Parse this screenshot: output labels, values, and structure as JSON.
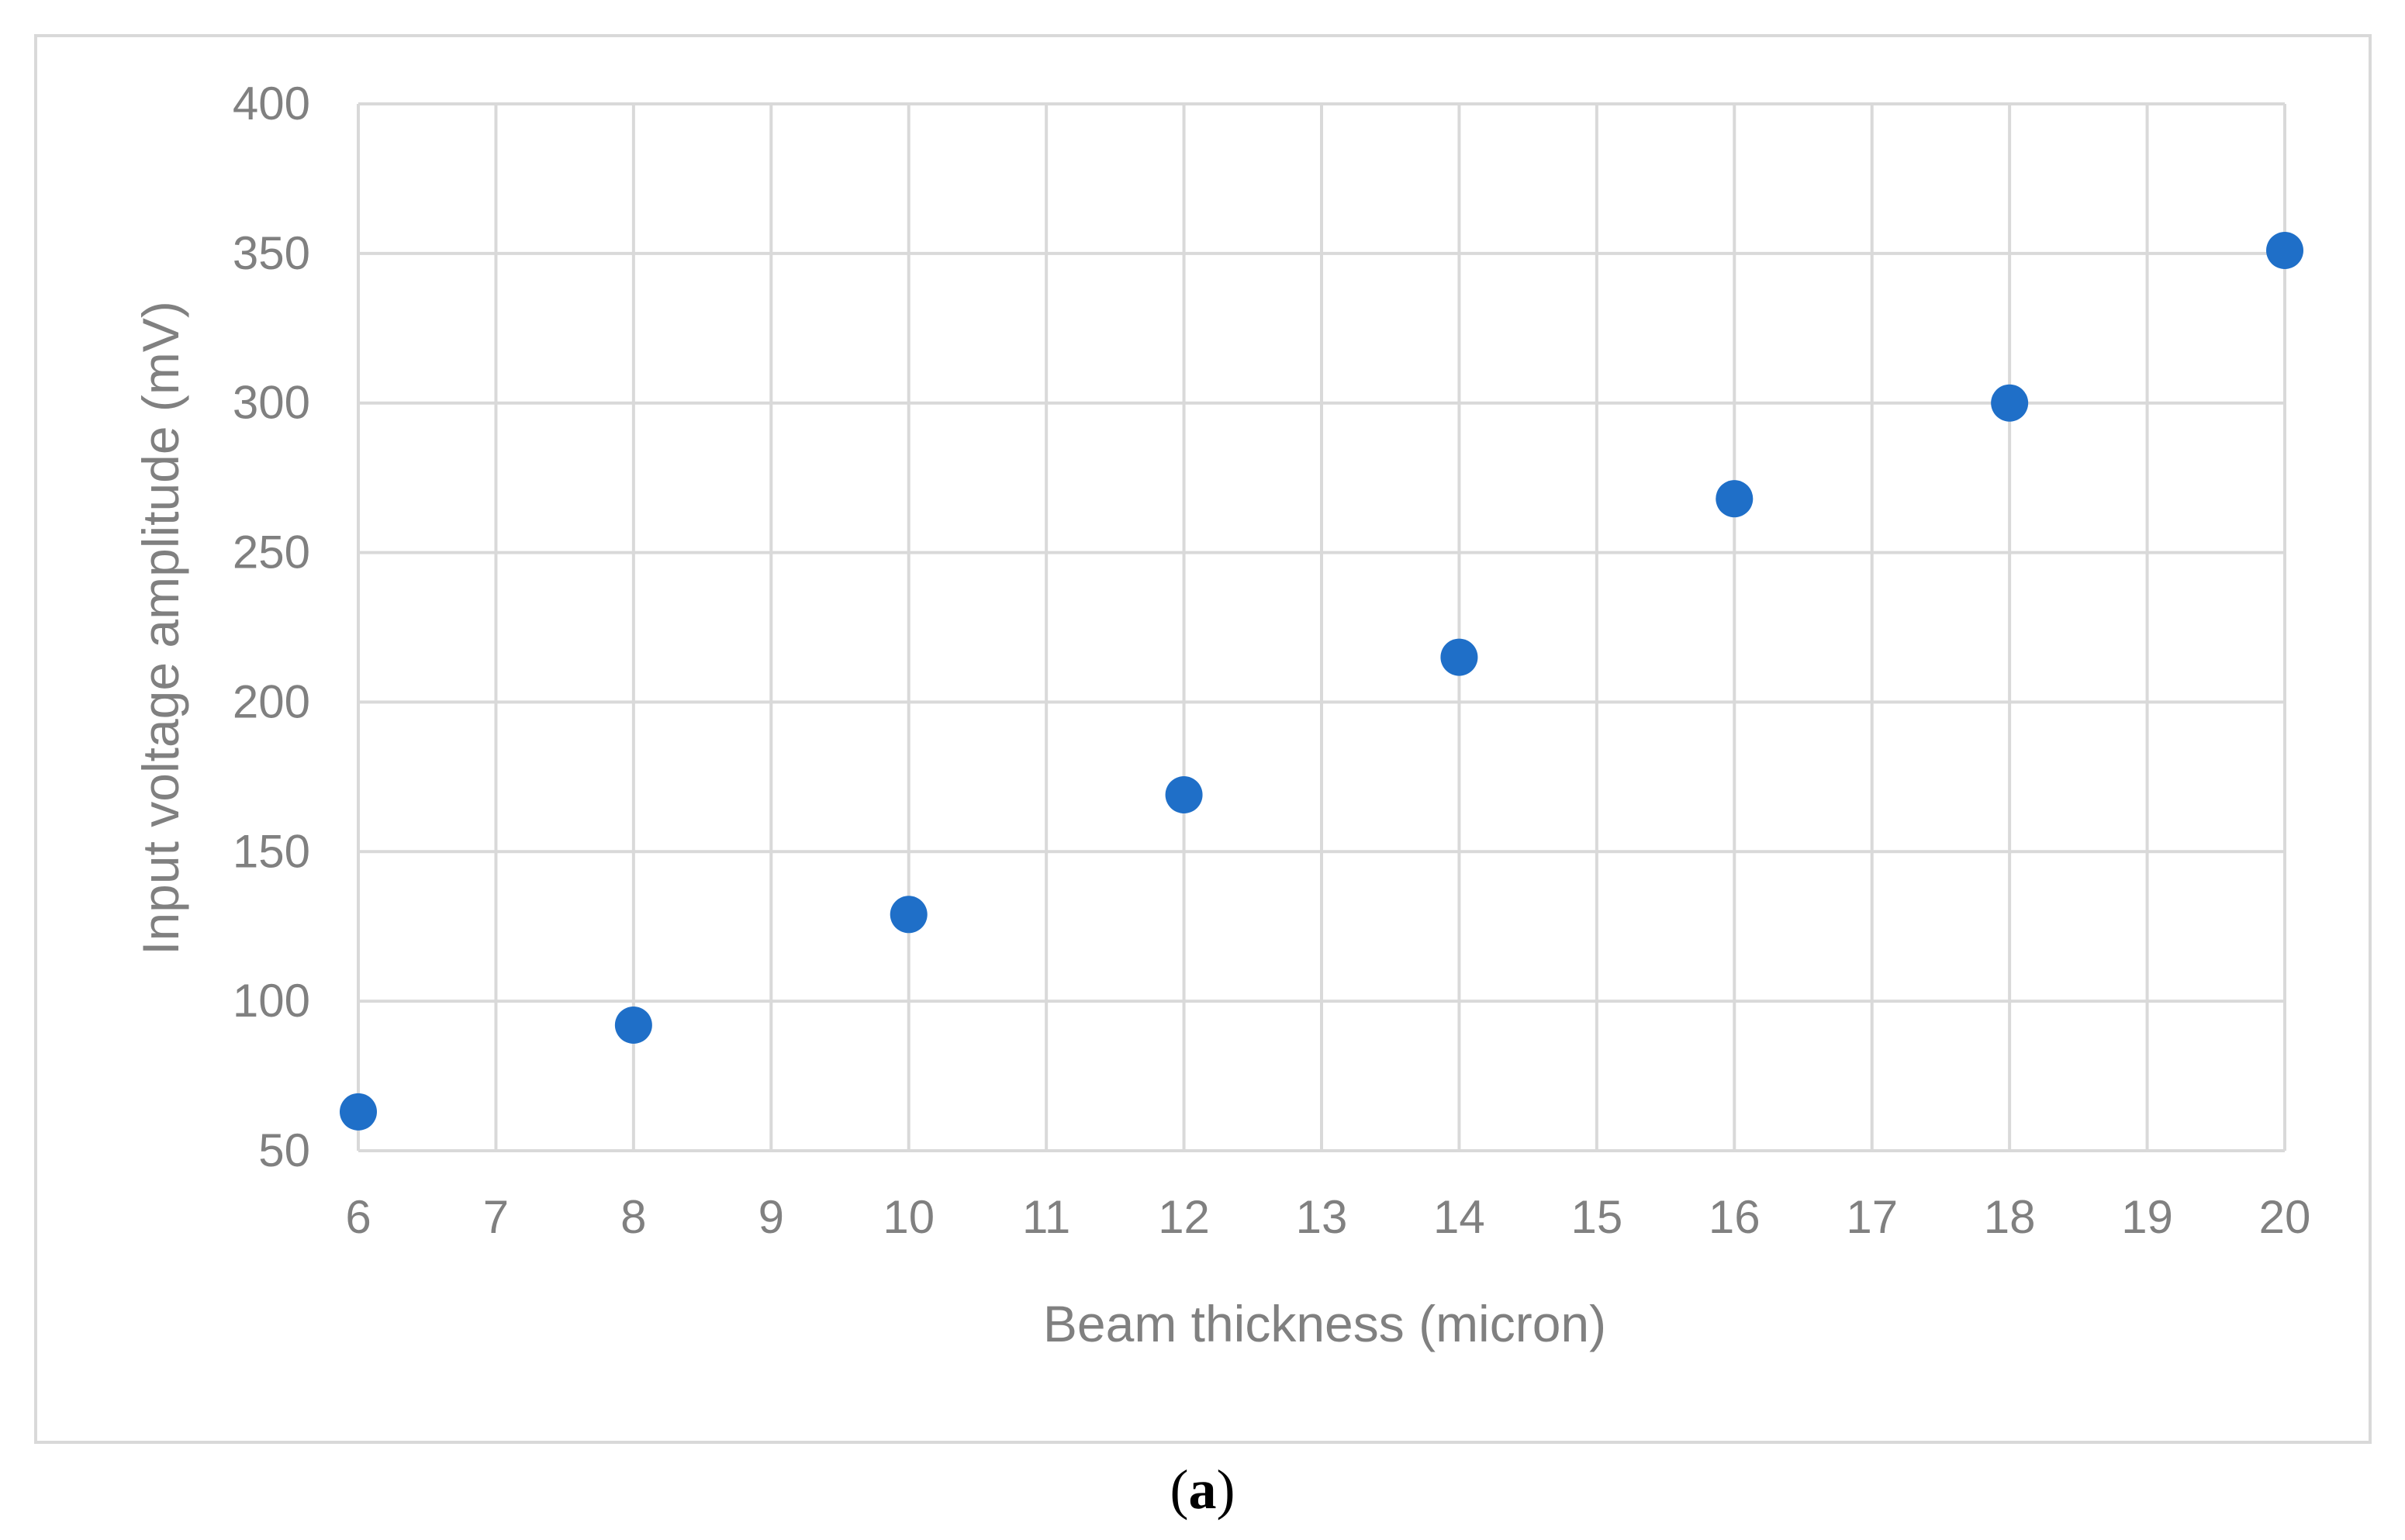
{
  "chart_data": {
    "type": "scatter",
    "xlabel": "Beam thickness (micron)",
    "ylabel": "Input voltage  amplitude (mV)",
    "xlim": [
      6,
      20
    ],
    "ylim": [
      50,
      400
    ],
    "x_ticks": [
      6,
      7,
      8,
      9,
      10,
      11,
      12,
      13,
      14,
      15,
      16,
      17,
      18,
      19,
      20
    ],
    "y_ticks": [
      50,
      100,
      150,
      200,
      250,
      300,
      350,
      400
    ],
    "grid": true,
    "legend": "none",
    "series": [
      {
        "x": [
          6,
          8,
          10,
          12,
          14,
          16,
          18,
          20
        ],
        "y": [
          63,
          92,
          129,
          169,
          215,
          268,
          300,
          351
        ]
      }
    ]
  },
  "colors": {
    "marker": "#1f6fc8",
    "grid": "#d9d9d9",
    "text": "#808080",
    "frame": "#d9d9d9"
  },
  "caption": {
    "open": "(",
    "letter": "a",
    "close": ")"
  }
}
